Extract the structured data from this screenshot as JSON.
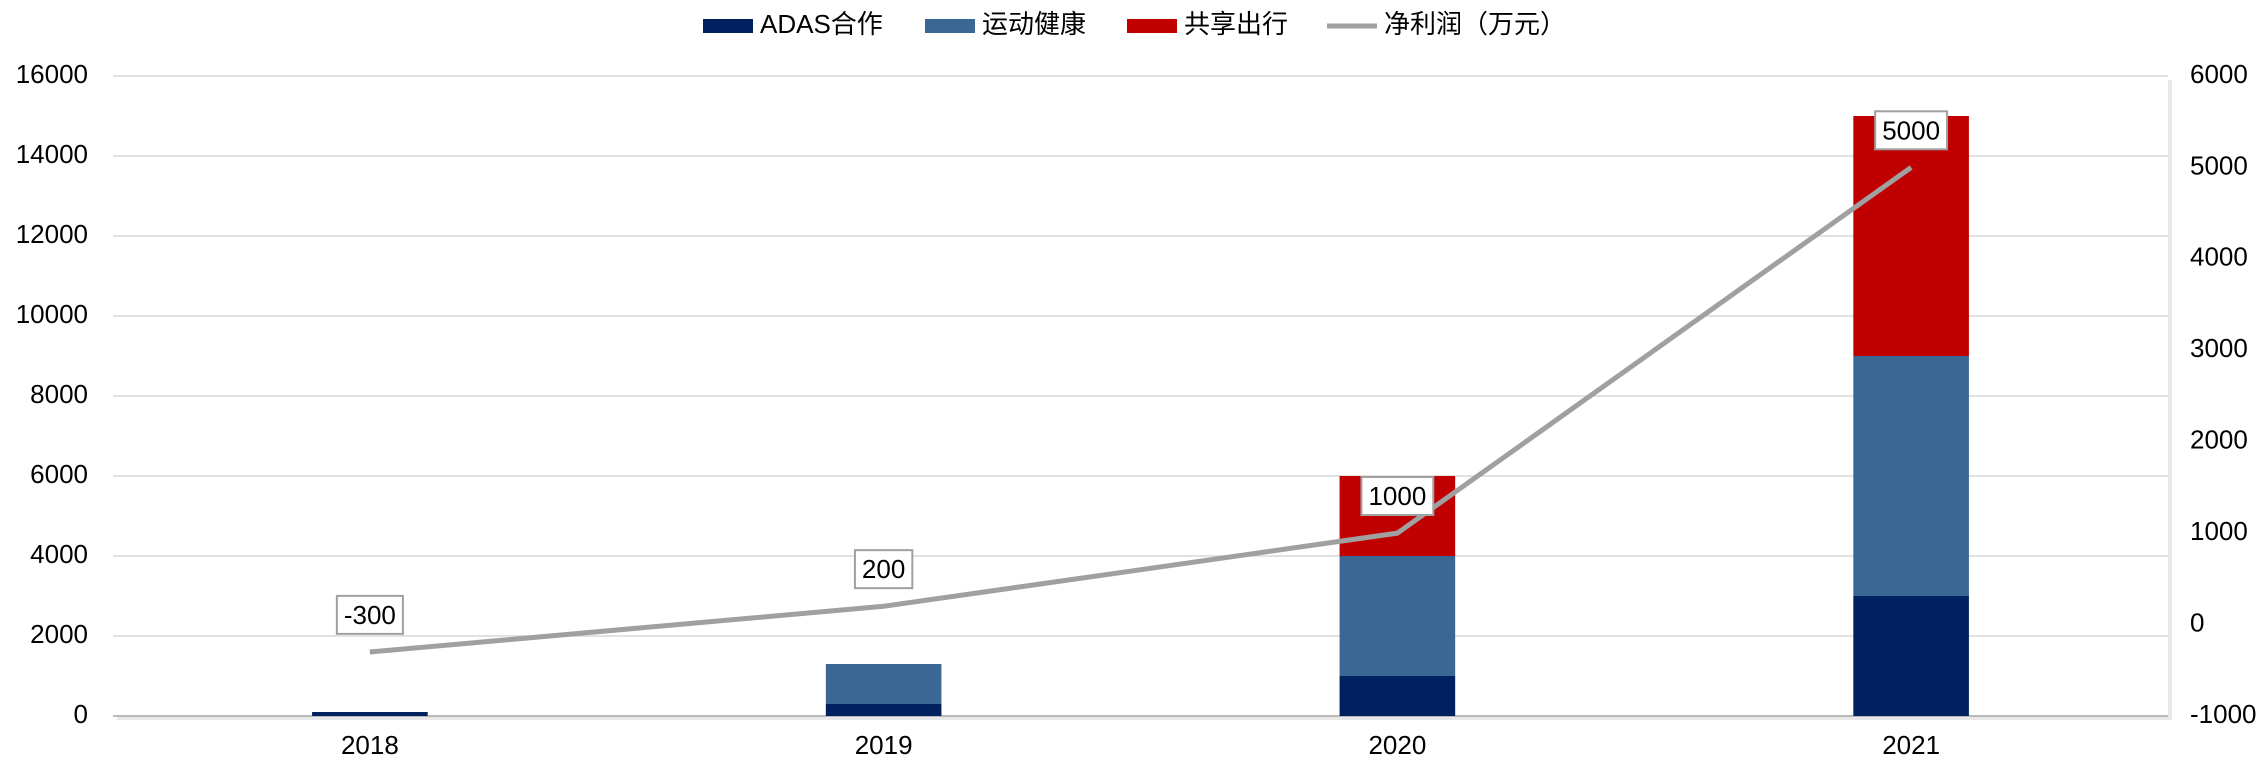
{
  "chart_data": {
    "type": "bar",
    "categories": [
      "2018",
      "2019",
      "2020",
      "2021"
    ],
    "series": [
      {
        "name": "ADAS合作",
        "color": "#002060",
        "values": [
          100,
          300,
          1000,
          3000
        ]
      },
      {
        "name": "运动健康",
        "color": "#3b6795",
        "values": [
          0,
          1000,
          3000,
          6000
        ]
      },
      {
        "name": "共享出行",
        "color": "#c00000",
        "values": [
          0,
          0,
          2000,
          6000
        ]
      },
      {
        "name": "净利润（万元）",
        "type": "line",
        "axis": "y2",
        "color": "#a0a0a0",
        "values": [
          -300,
          200,
          1000,
          5000
        ]
      }
    ],
    "ylim": [
      0,
      16000
    ],
    "yticks": [
      0,
      2000,
      4000,
      6000,
      8000,
      10000,
      12000,
      14000,
      16000
    ],
    "y2lim": [
      -1000,
      6000
    ],
    "y2ticks": [
      -1000,
      0,
      1000,
      2000,
      3000,
      4000,
      5000,
      6000
    ],
    "grid": true,
    "legend": "top"
  }
}
